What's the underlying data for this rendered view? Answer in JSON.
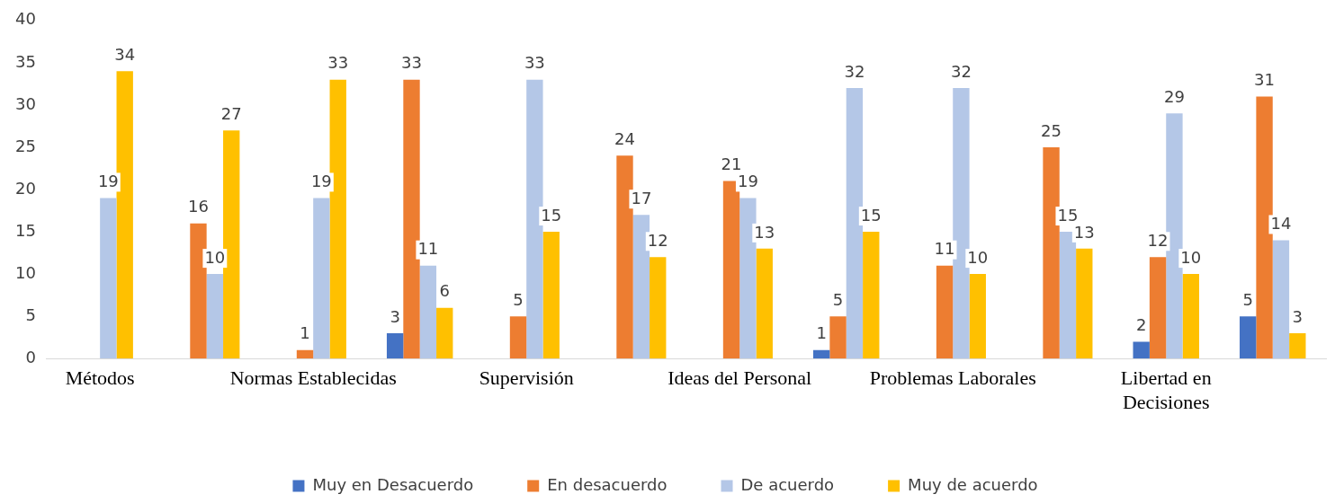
{
  "chart_data": {
    "type": "bar",
    "categories": [
      "Métodos",
      null,
      "Normas Establecidas",
      null,
      "Supervisión",
      null,
      "Ideas del Personal",
      null,
      "Problemas Laborales",
      null,
      "Libertad en Decisiones",
      null
    ],
    "series": [
      {
        "name": "Muy en Desacuerdo",
        "color": "#4472c4",
        "values": [
          null,
          null,
          null,
          3,
          null,
          null,
          null,
          1,
          null,
          null,
          2,
          5
        ]
      },
      {
        "name": "En desacuerdo",
        "color": "#ed7d31",
        "values": [
          null,
          16,
          1,
          33,
          5,
          24,
          21,
          5,
          11,
          25,
          12,
          31
        ]
      },
      {
        "name": "De acuerdo",
        "color": "#b4c7e7",
        "values": [
          19,
          10,
          19,
          11,
          33,
          17,
          19,
          32,
          32,
          15,
          29,
          14
        ]
      },
      {
        "name": "Muy de acuerdo",
        "color": "#ffc000",
        "values": [
          34,
          27,
          33,
          6,
          15,
          12,
          13,
          15,
          10,
          13,
          10,
          3
        ]
      }
    ],
    "ylim": [
      0,
      40
    ],
    "yticks": [
      0,
      5,
      10,
      15,
      20,
      25,
      30,
      35,
      40
    ],
    "grid": false,
    "legend": "bottom",
    "data_labels": true
  }
}
